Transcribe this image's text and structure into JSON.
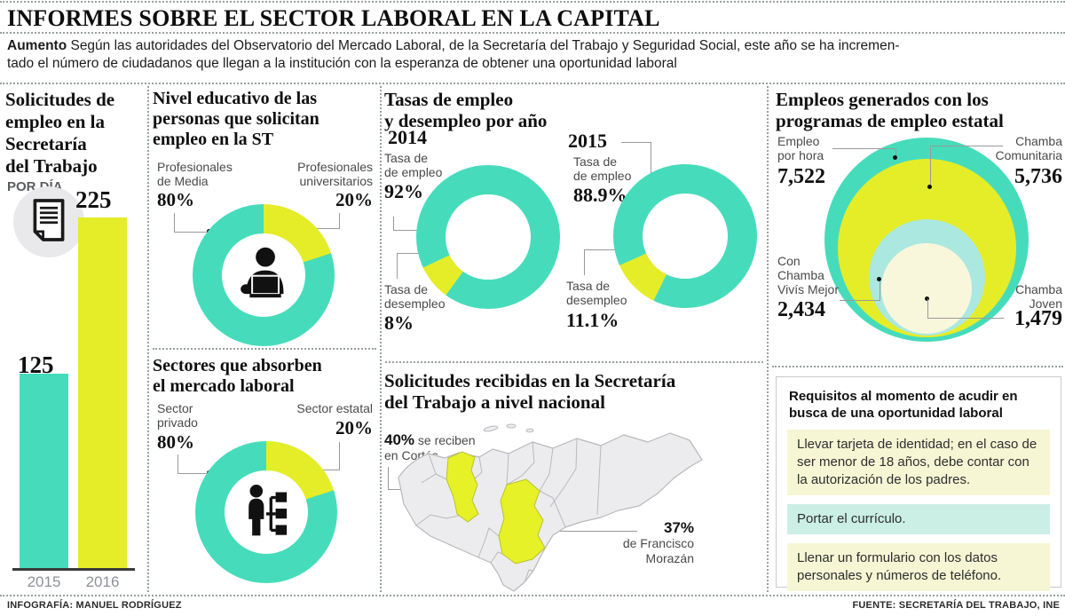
{
  "page_title": "INFORMES SOBRE EL SECTOR LABORAL EN LA CAPITAL",
  "subtitle": {
    "lead": "Aumento",
    "text": " Según las autoridades del Observatorio del Mercado Laboral, de la Secretaría del Trabajo y Seguridad Social, este año se ha incremen-\ntado el número de ciudadanos que llegan a la institución con la esperanza de obtener una oportunidad laboral"
  },
  "colors": {
    "teal": "#46dcbb",
    "yellow": "#e4ed28",
    "pale_cyan": "#abe8e0",
    "cream": "#f8f7dc",
    "req_yellow": "#f6f6d5",
    "req_cyan": "#cbeee5"
  },
  "solicitudes": {
    "title": "Solicitudes de\nempleo  en la\n Secretaría\ndel Trabajo",
    "subtitle": "POR DÍA",
    "bars": [
      {
        "year": "2015",
        "value": 125
      },
      {
        "year": "2016",
        "value": 225
      }
    ]
  },
  "nivel": {
    "title": "Nivel educativo de las\npersonas que solicitan\nempleo en la ST",
    "slices": [
      {
        "label": "Profesionales\nde Media",
        "pct": "80%",
        "value": 80
      },
      {
        "label": "Profesionales\nuniversitarios",
        "pct": "20%",
        "value": 20
      }
    ]
  },
  "sectores": {
    "title": "Sectores que absorben\nel mercado laboral",
    "slices": [
      {
        "label": "Sector\nprivado",
        "pct": "80%",
        "value": 80
      },
      {
        "label": "Sector estatal",
        "pct": "20%",
        "value": 20
      }
    ]
  },
  "tasas": {
    "title": "Tasas de empleo\ny desempleo por año",
    "years": [
      {
        "year": "2014",
        "empleo_label": "Tasa de\nde empleo",
        "empleo_pct": "92%",
        "empleo_value": 92,
        "desempleo_label": "Tasa de\ndesempleo",
        "desempleo_pct": "8%",
        "desempleo_value": 8
      },
      {
        "year": "2015",
        "empleo_label": "Tasa de\nde empleo",
        "empleo_pct": "88.9%",
        "empleo_value": 88.9,
        "desempleo_label": "Tasa de\ndesempleo",
        "desempleo_pct": "11.1%",
        "desempleo_value": 11.1
      }
    ]
  },
  "empleos": {
    "title": "Empleos generados con los\nprogramas de empleo estatal",
    "bubbles": [
      {
        "label": "Empleo\npor hora",
        "value": "7,522",
        "numeric": 7522
      },
      {
        "label": "Chamba\nComunitaria",
        "value": "5,736",
        "numeric": 5736
      },
      {
        "label": "Con\nChamba\nVivís Mejor",
        "value": "2,434",
        "numeric": 2434
      },
      {
        "label": "Chamba\nJoven",
        "value": "1,479",
        "numeric": 1479
      }
    ]
  },
  "mapa": {
    "title": "Solicitudes recibidas en la Secretaría\ndel Trabajo a nivel nacional",
    "cortes": {
      "pct": "40%",
      "line1": " se reciben",
      "line2": "en Cortés"
    },
    "morazan": {
      "pct": "37%",
      "line1": "de Francisco",
      "line2": "Morazán"
    }
  },
  "requisitos": {
    "title": "Requisitos al momento de acudir en\nbusca de una oportunidad laboral",
    "items": [
      {
        "text": "Llevar tarjeta de identidad; en el caso de ser menor de 18 años, debe contar con la autorización de los padres."
      },
      {
        "text": "Portar el currículo."
      },
      {
        "text": "Llenar un formulario con los datos personales y números de teléfono."
      }
    ]
  },
  "footer": {
    "credit": "INFOGRAFÍA: MANUEL RODRÍGUEZ",
    "source": "FUENTE: SECRETARÍA DEL TRABAJO, INE"
  },
  "chart_data": [
    {
      "type": "bar",
      "title": "Solicitudes de empleo en la Secretaría del Trabajo (por día)",
      "categories": [
        "2015",
        "2016"
      ],
      "values": [
        125,
        225
      ],
      "ylim": [
        0,
        225
      ]
    },
    {
      "type": "pie",
      "title": "Nivel educativo de las personas que solicitan empleo en la ST",
      "labels": [
        "Profesionales de Media",
        "Profesionales universitarios"
      ],
      "values": [
        80,
        20
      ],
      "unit": "%"
    },
    {
      "type": "pie",
      "title": "Sectores que absorben el mercado laboral",
      "labels": [
        "Sector privado",
        "Sector estatal"
      ],
      "values": [
        80,
        20
      ],
      "unit": "%"
    },
    {
      "type": "pie",
      "title": "Tasas de empleo y desempleo por año",
      "series": [
        {
          "name": "2014",
          "labels": [
            "Tasa de empleo",
            "Tasa de desempleo"
          ],
          "values": [
            92,
            8
          ]
        },
        {
          "name": "2015",
          "labels": [
            "Tasa de empleo",
            "Tasa de desempleo"
          ],
          "values": [
            88.9,
            11.1
          ]
        }
      ],
      "unit": "%"
    },
    {
      "type": "bubble",
      "title": "Empleos generados con los programas de empleo estatal",
      "labels": [
        "Empleo por hora",
        "Chamba Comunitaria",
        "Con Chamba Vivís Mejor",
        "Chamba Joven"
      ],
      "values": [
        7522,
        5736,
        2434,
        1479
      ]
    },
    {
      "type": "map",
      "title": "Solicitudes recibidas en la Secretaría del Trabajo a nivel nacional",
      "regions": [
        {
          "name": "Cortés",
          "value": 40
        },
        {
          "name": "Francisco Morazán",
          "value": 37
        }
      ],
      "unit": "%"
    }
  ]
}
